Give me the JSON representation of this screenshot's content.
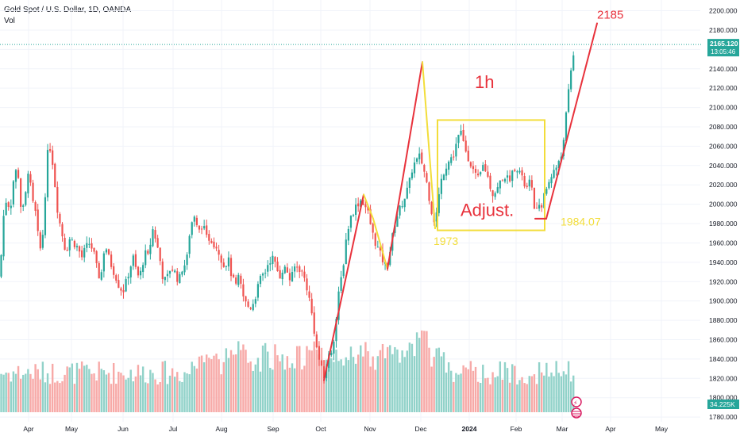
{
  "header": {
    "title": "Gold Spot / U.S. Dollar, 1D, OANDA",
    "vol_label": "Vol"
  },
  "price_badge": {
    "price": "2165.120",
    "countdown": "13:05:46",
    "color": "#26a69a"
  },
  "volume_badge": {
    "value": "34.225K",
    "color": "#26a69a"
  },
  "colors": {
    "up": "#26a69a",
    "down": "#ef5350",
    "volume_up": "#91d2c9",
    "volume_down": "#f7a9a7",
    "annotation_red": "#e8323c",
    "annotation_yellow": "#f2dd3a",
    "grid": "#f0f3fa",
    "axis_text": "#131722",
    "last_price_line": "#26a69a"
  },
  "chart_data": {
    "type": "candlestick",
    "instrument": "Gold Spot / U.S. Dollar",
    "timeframe": "1D",
    "source": "OANDA",
    "y_ticks": [
      2200,
      2180,
      2160,
      2140,
      2120,
      2100,
      2080,
      2060,
      2040,
      2020,
      2000,
      1980,
      1960,
      1940,
      1920,
      1900,
      1880,
      1860,
      1840,
      1820,
      1800,
      1780
    ],
    "y_tick_labels": [
      "2200.000",
      "2180.000",
      "2160.000",
      "2140.000",
      "2120.000",
      "2100.000",
      "2080.000",
      "2060.000",
      "2040.000",
      "2020.000",
      "2000.000",
      "1980.000",
      "1960.000",
      "1940.000",
      "1920.000",
      "1900.000",
      "1880.000",
      "1860.000",
      "1840.000",
      "1820.000",
      "1800.000",
      "1780.000"
    ],
    "ylim": [
      1776,
      2207
    ],
    "x_labels": [
      "Apr",
      "May",
      "Jun",
      "Jul",
      "Aug",
      "Sep",
      "Oct",
      "Nov",
      "Dec",
      "2024",
      "Feb",
      "Mar",
      "Apr",
      "May"
    ],
    "last_price": 2165.12,
    "price_anchors": [
      [
        0,
        1925
      ],
      [
        4,
        1985
      ],
      [
        8,
        2005
      ],
      [
        13,
        1995
      ],
      [
        17,
        2025
      ],
      [
        22,
        2040
      ],
      [
        27,
        1990
      ],
      [
        31,
        2000
      ],
      [
        36,
        2040
      ],
      [
        40,
        2005
      ],
      [
        45,
        1990
      ],
      [
        50,
        1950
      ],
      [
        55,
        1975
      ],
      [
        59,
        2050
      ],
      [
        64,
        2060
      ],
      [
        68,
        2030
      ],
      [
        73,
        1990
      ],
      [
        78,
        1970
      ],
      [
        83,
        1950
      ],
      [
        88,
        1965
      ],
      [
        93,
        1960
      ],
      [
        98,
        1955
      ],
      [
        103,
        1945
      ],
      [
        108,
        1955
      ],
      [
        113,
        1960
      ],
      [
        118,
        1950
      ],
      [
        124,
        1925
      ],
      [
        128,
        1930
      ],
      [
        132,
        1960
      ],
      [
        137,
        1945
      ],
      [
        141,
        1935
      ],
      [
        146,
        1925
      ],
      [
        150,
        1915
      ],
      [
        155,
        1910
      ],
      [
        159,
        1920
      ],
      [
        164,
        1935
      ],
      [
        168,
        1945
      ],
      [
        173,
        1925
      ],
      [
        178,
        1930
      ],
      [
        182,
        1950
      ],
      [
        187,
        1945
      ],
      [
        192,
        1975
      ],
      [
        196,
        1965
      ],
      [
        201,
        1945
      ],
      [
        206,
        1920
      ],
      [
        211,
        1925
      ],
      [
        215,
        1935
      ],
      [
        220,
        1930
      ],
      [
        225,
        1920
      ],
      [
        230,
        1935
      ],
      [
        235,
        1940
      ],
      [
        240,
        1980
      ],
      [
        245,
        1985
      ],
      [
        250,
        1970
      ],
      [
        255,
        1980
      ],
      [
        260,
        1965
      ],
      [
        265,
        1965
      ],
      [
        269,
        1960
      ],
      [
        274,
        1955
      ],
      [
        278,
        1945
      ],
      [
        283,
        1935
      ],
      [
        287,
        1945
      ],
      [
        292,
        1925
      ],
      [
        297,
        1915
      ],
      [
        301,
        1925
      ],
      [
        306,
        1905
      ],
      [
        311,
        1895
      ],
      [
        315,
        1893
      ],
      [
        320,
        1900
      ],
      [
        325,
        1915
      ],
      [
        329,
        1925
      ],
      [
        334,
        1930
      ],
      [
        338,
        1940
      ],
      [
        343,
        1945
      ],
      [
        348,
        1935
      ],
      [
        352,
        1925
      ],
      [
        357,
        1935
      ],
      [
        362,
        1930
      ],
      [
        366,
        1920
      ],
      [
        371,
        1935
      ],
      [
        376,
        1935
      ],
      [
        380,
        1930
      ],
      [
        385,
        1920
      ],
      [
        390,
        1900
      ],
      [
        394,
        1880
      ],
      [
        399,
        1850
      ],
      [
        404,
        1832
      ],
      [
        408,
        1820
      ],
      [
        413,
        1840
      ],
      [
        418,
        1850
      ],
      [
        422,
        1870
      ],
      [
        427,
        1910
      ],
      [
        432,
        1935
      ],
      [
        436,
        1965
      ],
      [
        441,
        1985
      ],
      [
        446,
        1995
      ],
      [
        450,
        2000
      ],
      [
        455,
        2005
      ],
      [
        459,
        2000
      ],
      [
        464,
        1990
      ],
      [
        469,
        1970
      ],
      [
        473,
        1960
      ],
      [
        478,
        1950
      ],
      [
        483,
        1940
      ],
      [
        487,
        1935
      ],
      [
        492,
        1955
      ],
      [
        497,
        1980
      ],
      [
        501,
        1990
      ],
      [
        506,
        2000
      ],
      [
        511,
        2010
      ],
      [
        515,
        2020
      ],
      [
        520,
        2040
      ],
      [
        525,
        2045
      ],
      [
        529,
        2050
      ],
      [
        534,
        2035
      ],
      [
        538,
        2020
      ],
      [
        543,
        1995
      ],
      [
        548,
        1980
      ],
      [
        552,
        2005
      ],
      [
        557,
        2030
      ],
      [
        562,
        2040
      ],
      [
        566,
        2045
      ],
      [
        571,
        2050
      ],
      [
        575,
        2065
      ],
      [
        580,
        2075
      ],
      [
        585,
        2060
      ],
      [
        589,
        2050
      ],
      [
        594,
        2040
      ],
      [
        598,
        2030
      ],
      [
        603,
        2025
      ],
      [
        608,
        2040
      ],
      [
        612,
        2035
      ],
      [
        617,
        2020
      ],
      [
        621,
        2010
      ],
      [
        626,
        2015
      ],
      [
        631,
        2025
      ],
      [
        635,
        2030
      ],
      [
        640,
        2025
      ],
      [
        644,
        2030
      ],
      [
        649,
        2040
      ],
      [
        654,
        2035
      ],
      [
        658,
        2025
      ],
      [
        663,
        2015
      ],
      [
        668,
        2025
      ],
      [
        672,
        2000
      ],
      [
        677,
        1992
      ],
      [
        681,
        1998
      ],
      [
        686,
        2010
      ],
      [
        690,
        2020
      ],
      [
        694,
        2030
      ],
      [
        698,
        2035
      ],
      [
        702,
        2040
      ],
      [
        706,
        2045
      ],
      [
        710,
        2070
      ],
      [
        714,
        2100
      ],
      [
        718,
        2130
      ],
      [
        722,
        2155
      ],
      [
        725,
        2165
      ]
    ],
    "annotations": [
      {
        "type": "line",
        "color": "red",
        "points": [
          [
            408,
            1818
          ],
          [
            458,
            2010
          ]
        ]
      },
      {
        "type": "line",
        "color": "yellow",
        "points": [
          [
            458,
            2010
          ],
          [
            470,
            1985
          ]
        ]
      },
      {
        "type": "line",
        "color": "yellow",
        "points": [
          [
            470,
            1985
          ],
          [
            488,
            1933
          ]
        ]
      },
      {
        "type": "line",
        "color": "red",
        "points": [
          [
            488,
            1933
          ],
          [
            532,
            2147
          ]
        ]
      },
      {
        "type": "line",
        "color": "yellow",
        "points": [
          [
            532,
            2147
          ],
          [
            548,
            1975
          ]
        ]
      },
      {
        "type": "rectangle",
        "color": "yellow",
        "x_from": 551,
        "x_to": 686,
        "y_from": 2087,
        "y_to": 1973
      },
      {
        "type": "line",
        "color": "red",
        "points": [
          [
            674,
            1985
          ],
          [
            688,
            1985
          ]
        ]
      },
      {
        "type": "line",
        "color": "red",
        "points": [
          [
            688,
            1985
          ],
          [
            752,
            2187
          ]
        ]
      }
    ],
    "text_annotations": [
      {
        "text": "2185",
        "color": "red",
        "x": 752,
        "y": 2192
      },
      {
        "text": "1h",
        "color": "red",
        "x": 598,
        "y": 2120
      },
      {
        "text": "Adjust.",
        "color": "red",
        "x": 580,
        "y": 1988
      },
      {
        "text": "1973",
        "color": "yellow",
        "x": 546,
        "y": 1958
      },
      {
        "text": "1984.07",
        "color": "yellow",
        "x": 706,
        "y": 1978
      }
    ]
  }
}
